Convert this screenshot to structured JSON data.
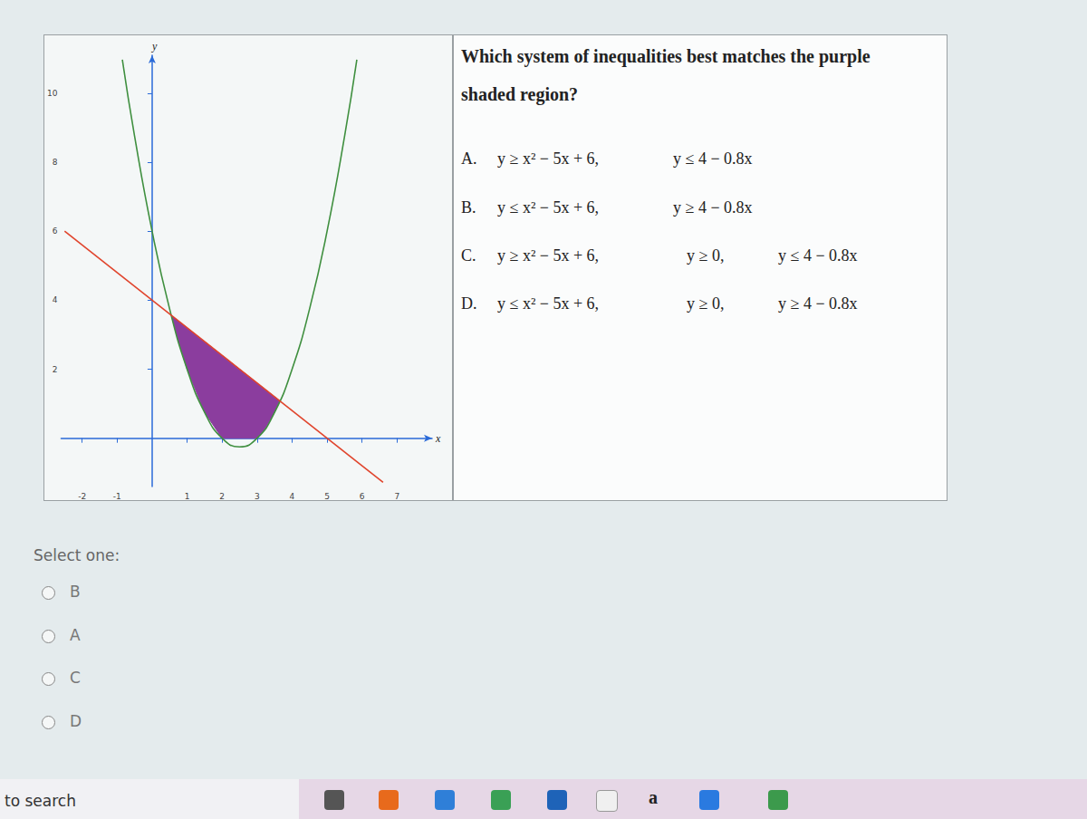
{
  "chart_data": {
    "type": "line",
    "xlim": [
      -2.6,
      8
    ],
    "ylim": [
      -1.4,
      11.1
    ],
    "xticks": [
      -2,
      -1,
      1,
      2,
      3,
      4,
      5,
      6,
      7
    ],
    "yticks": [
      2,
      4,
      6,
      8,
      10
    ],
    "x_label": "x",
    "y_label": "y",
    "grid": false,
    "series": [
      {
        "color": "#3f8f3f",
        "line_style": "solid",
        "x": [
          -0.85,
          -0.5,
          0,
          0.5,
          1,
          1.5,
          2,
          2.5,
          3,
          3.5,
          4,
          4.5,
          5,
          5.5,
          5.85
        ],
        "values": [
          10.97,
          8.75,
          6,
          3.75,
          2,
          0.75,
          0,
          -0.25,
          0,
          0.75,
          2,
          3.75,
          6,
          8.75,
          10.97
        ]
      },
      {
        "color": "#e0442c",
        "line_style": "solid",
        "x": [
          -2.5,
          6.6
        ],
        "values": [
          6.0,
          -1.28
        ]
      }
    ],
    "region": {
      "color": "#8b3d9e",
      "points": [
        [
          0.55,
          3.56
        ],
        [
          3.65,
          1.08
        ],
        [
          3.5,
          0.75
        ],
        [
          3.25,
          0.31
        ],
        [
          3,
          0
        ],
        [
          2.5,
          0
        ],
        [
          2,
          0
        ],
        [
          1.5,
          0.75
        ],
        [
          1,
          2
        ],
        [
          0.75,
          2.81
        ]
      ]
    }
  },
  "question": "Which system of inequalities best matches the purple shaded region?",
  "options": [
    {
      "letter": "A.",
      "parts": [
        "y ≥ x² − 5x + 6,",
        "y ≤ 4 − 0.8x"
      ]
    },
    {
      "letter": "B.",
      "parts": [
        "y ≤ x² − 5x + 6,",
        "y ≥ 4 − 0.8x"
      ]
    },
    {
      "letter": "C.",
      "parts": [
        "y ≥ x² − 5x + 6,",
        "y ≥ 0,",
        "y ≤ 4 − 0.8x"
      ]
    },
    {
      "letter": "D.",
      "parts": [
        "y ≤ x² − 5x + 6,",
        "y ≥ 0,",
        "y ≥ 4 − 0.8x"
      ]
    }
  ],
  "select_label": "Select one:",
  "choices": [
    "B",
    "A",
    "C",
    "D"
  ],
  "taskbar": {
    "search": "to search",
    "icon_text": "a"
  }
}
